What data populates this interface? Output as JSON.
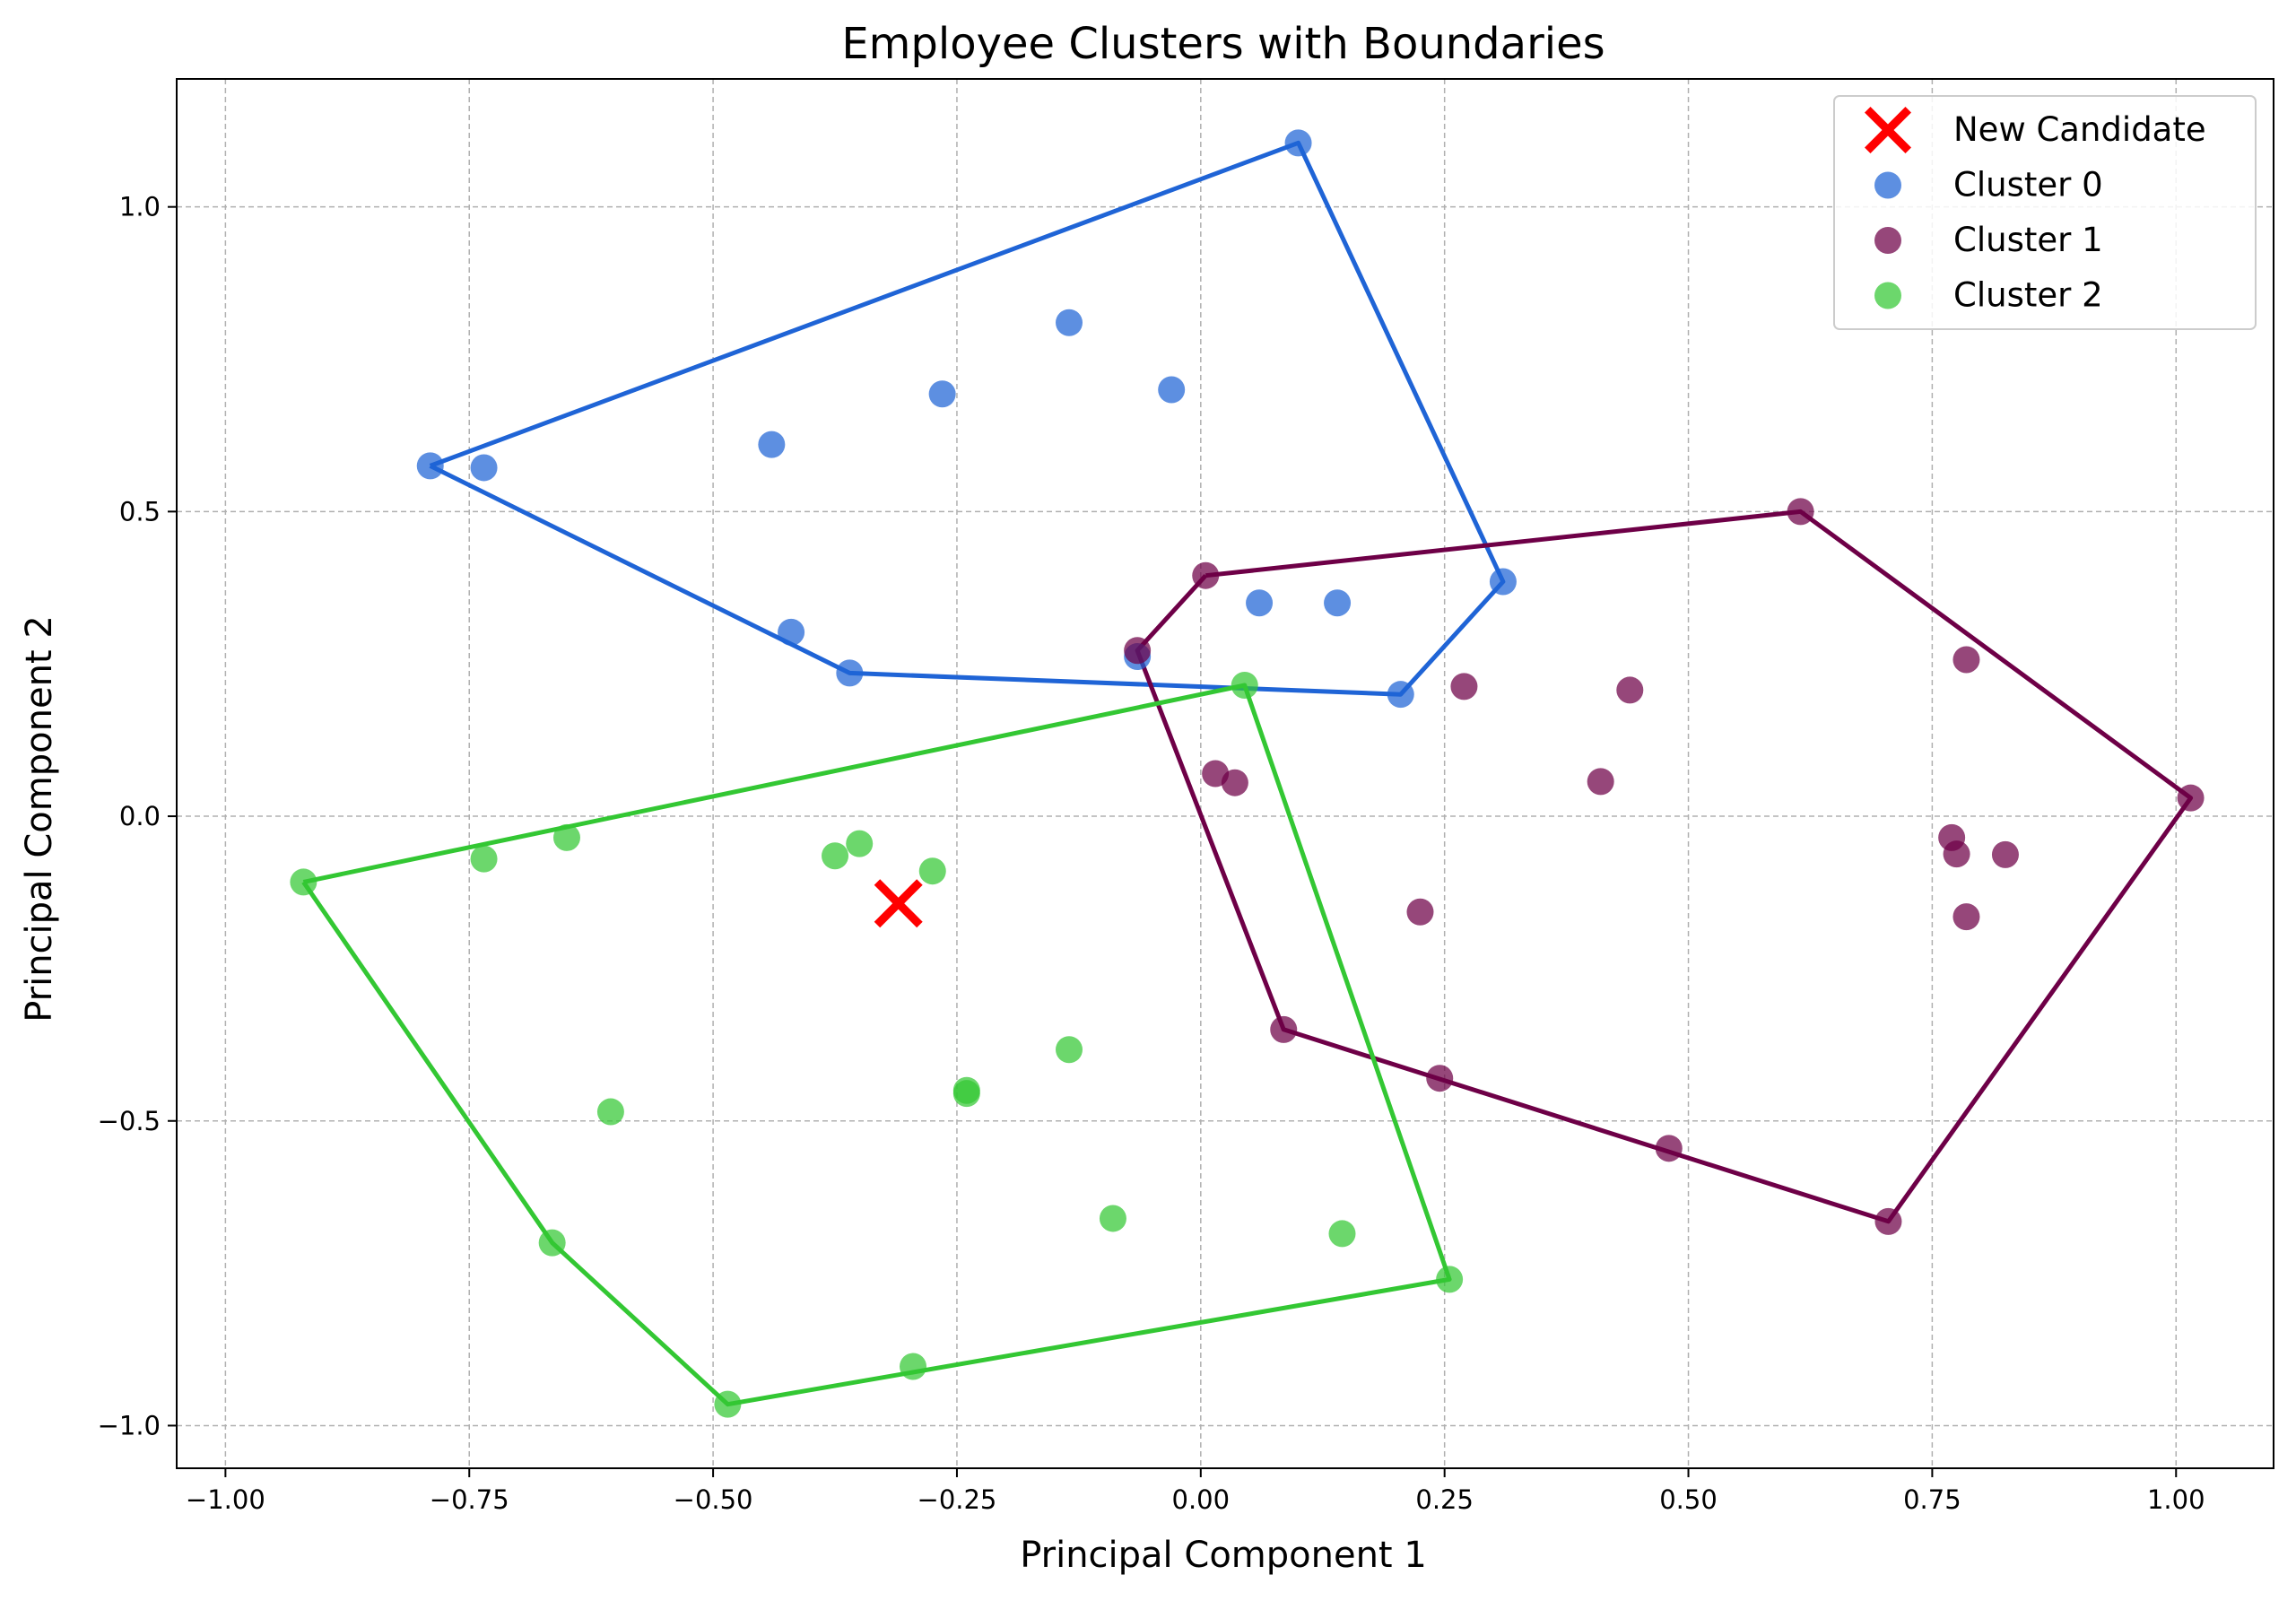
{
  "chart_data": {
    "type": "scatter",
    "title": "Employee Clusters with Boundaries",
    "xlabel": "Principal Component 1",
    "ylabel": "Principal Component 2",
    "xlim": [
      -1.05,
      1.1
    ],
    "ylim": [
      -1.07,
      1.21
    ],
    "x_ticks": [
      -1.0,
      -0.75,
      -0.5,
      -0.25,
      0.0,
      0.25,
      0.5,
      0.75,
      1.0
    ],
    "x_tick_labels": [
      "−1.00",
      "−0.75",
      "−0.50",
      "−0.25",
      "0.00",
      "0.25",
      "0.50",
      "0.75",
      "1.00"
    ],
    "y_ticks": [
      -1.0,
      -0.5,
      0.0,
      0.5,
      1.0
    ],
    "y_tick_labels": [
      "−1.0",
      "−0.5",
      "0.0",
      "0.5",
      "1.0"
    ],
    "grid": true,
    "legend_position": "top-right",
    "series": [
      {
        "name": "Cluster 0",
        "color": "#1f64d6",
        "points": [
          [
            0.1,
            1.105
          ],
          [
            -0.79,
            0.575
          ],
          [
            -0.735,
            0.572
          ],
          [
            -0.44,
            0.61
          ],
          [
            -0.265,
            0.693
          ],
          [
            -0.135,
            0.81
          ],
          [
            -0.03,
            0.7
          ],
          [
            -0.42,
            0.302
          ],
          [
            -0.36,
            0.235
          ],
          [
            0.06,
            0.35
          ],
          [
            0.14,
            0.35
          ],
          [
            -0.065,
            0.262
          ],
          [
            0.205,
            0.2
          ],
          [
            0.31,
            0.385
          ]
        ],
        "hull": [
          [
            -0.79,
            0.575
          ],
          [
            0.1,
            1.105
          ],
          [
            0.31,
            0.385
          ],
          [
            0.205,
            0.2
          ],
          [
            -0.36,
            0.235
          ],
          [
            -0.79,
            0.575
          ]
        ]
      },
      {
        "name": "Cluster 1",
        "color": "#6e0047",
        "points": [
          [
            0.615,
            0.5
          ],
          [
            0.005,
            0.395
          ],
          [
            -0.065,
            0.272
          ],
          [
            0.27,
            0.213
          ],
          [
            0.44,
            0.207
          ],
          [
            0.785,
            0.257
          ],
          [
            0.015,
            0.07
          ],
          [
            0.035,
            0.055
          ],
          [
            0.41,
            0.057
          ],
          [
            1.015,
            0.03
          ],
          [
            0.77,
            -0.035
          ],
          [
            0.775,
            -0.062
          ],
          [
            0.825,
            -0.063
          ],
          [
            0.225,
            -0.157
          ],
          [
            0.785,
            -0.165
          ],
          [
            0.085,
            -0.35
          ],
          [
            0.245,
            -0.43
          ],
          [
            0.48,
            -0.545
          ],
          [
            0.705,
            -0.665
          ]
        ],
        "hull": [
          [
            0.005,
            0.395
          ],
          [
            0.615,
            0.5
          ],
          [
            1.015,
            0.03
          ],
          [
            0.705,
            -0.665
          ],
          [
            0.085,
            -0.35
          ],
          [
            -0.065,
            0.272
          ],
          [
            0.005,
            0.395
          ]
        ]
      },
      {
        "name": "Cluster 2",
        "color": "#33c733",
        "points": [
          [
            0.045,
            0.215
          ],
          [
            -0.92,
            -0.108
          ],
          [
            -0.735,
            -0.07
          ],
          [
            -0.65,
            -0.035
          ],
          [
            -0.375,
            -0.065
          ],
          [
            -0.35,
            -0.045
          ],
          [
            -0.275,
            -0.09
          ],
          [
            -0.135,
            -0.383
          ],
          [
            -0.24,
            -0.45
          ],
          [
            -0.24,
            -0.455
          ],
          [
            -0.605,
            -0.485
          ],
          [
            -0.665,
            -0.7
          ],
          [
            -0.09,
            -0.66
          ],
          [
            0.145,
            -0.685
          ],
          [
            0.255,
            -0.76
          ],
          [
            -0.295,
            -0.903
          ],
          [
            -0.485,
            -0.965
          ]
        ],
        "hull": [
          [
            -0.92,
            -0.108
          ],
          [
            0.045,
            0.215
          ],
          [
            0.255,
            -0.76
          ],
          [
            -0.485,
            -0.965
          ],
          [
            -0.665,
            -0.7
          ],
          [
            -0.92,
            -0.108
          ]
        ]
      }
    ],
    "highlight": {
      "name": "New Candidate",
      "color": "#ff0000",
      "marker": "x-mark",
      "point": [
        -0.31,
        -0.143
      ]
    }
  }
}
